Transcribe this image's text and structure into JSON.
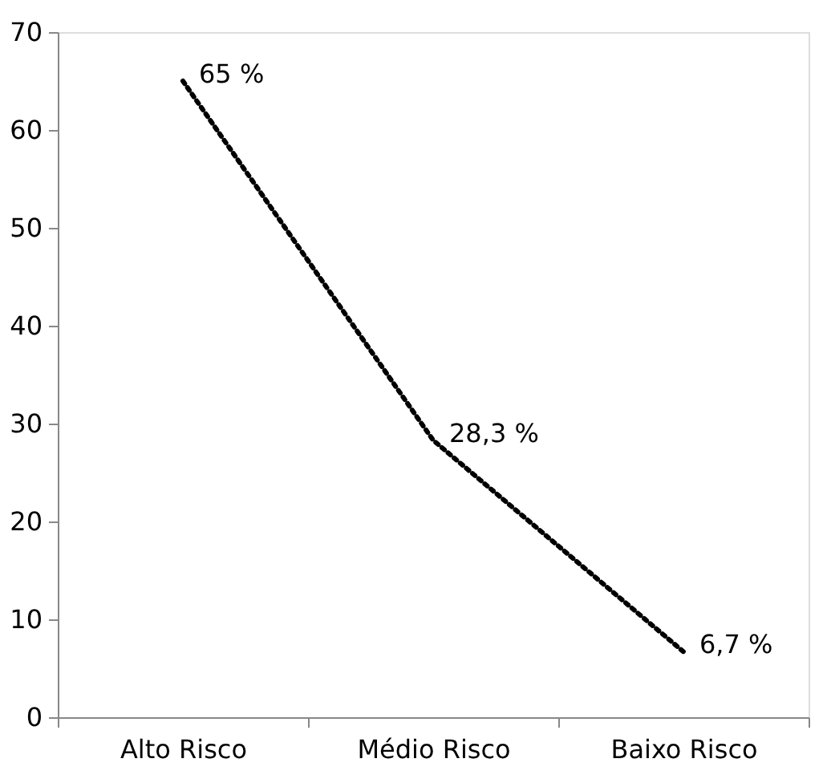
{
  "chart_data": {
    "type": "line",
    "categories": [
      "Alto Risco",
      "Médio Risco",
      "Baixo Risco"
    ],
    "values": [
      65,
      28.3,
      6.7
    ],
    "value_labels": [
      "65 %",
      "28,3 %",
      "6,7 %"
    ],
    "color": "#000000",
    "line_style": "dotted",
    "ylim": [
      0,
      70
    ],
    "yticks": [
      0,
      10,
      20,
      30,
      40,
      50,
      60,
      70
    ]
  }
}
